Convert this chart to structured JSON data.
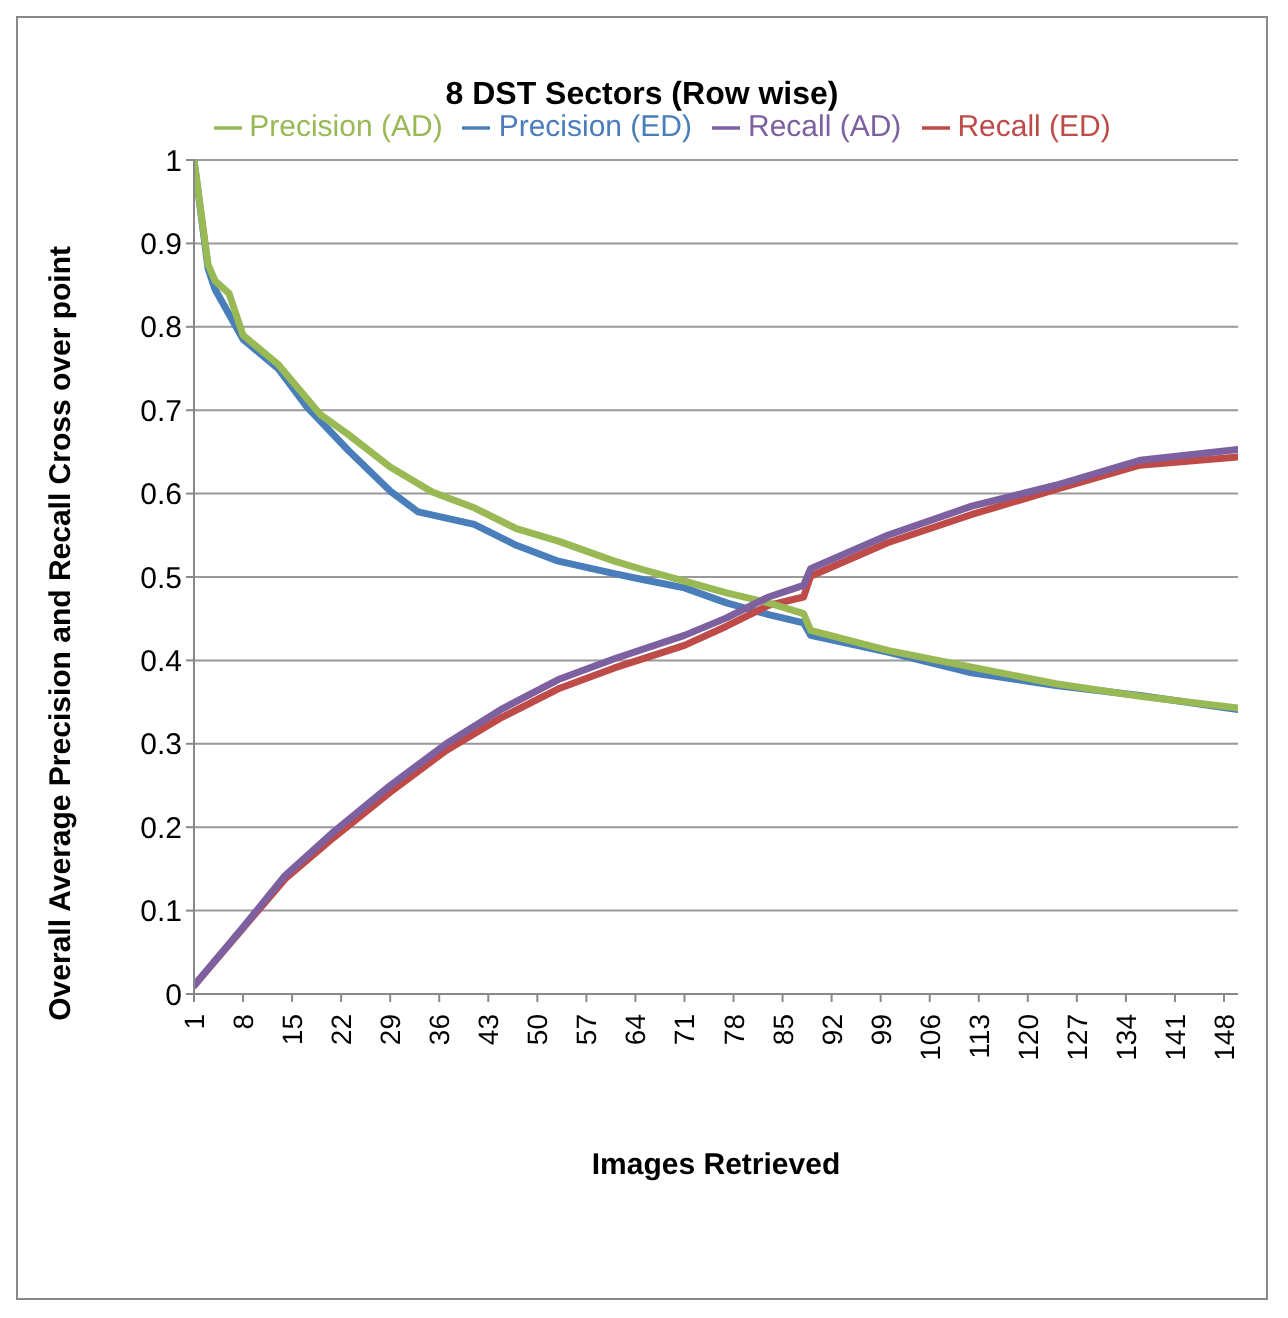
{
  "chart_data": {
    "type": "line",
    "title": "8  DST Sectors (Row wise)",
    "xlabel": "Images Retrieved",
    "ylabel": "Overall Average Precision and Recall Cross over point",
    "xlim": [
      1,
      150
    ],
    "xticks": [
      1,
      8,
      15,
      22,
      29,
      36,
      43,
      50,
      57,
      64,
      71,
      78,
      85,
      92,
      99,
      106,
      113,
      120,
      127,
      134,
      141,
      148
    ],
    "ylim": [
      0,
      1
    ],
    "yticks": [
      0,
      0.1,
      0.2,
      0.3,
      0.4,
      0.5,
      0.6,
      0.7,
      0.8,
      0.9,
      1
    ],
    "grid": "y",
    "legend": "top",
    "marker": "none",
    "line_style": "solid",
    "series": [
      {
        "name": "Precision (ED)",
        "color": "#4a7ebb",
        "x": [
          1,
          3,
          4,
          8,
          13,
          17,
          23,
          29,
          33,
          41,
          47,
          53,
          61,
          65,
          71,
          77,
          83,
          88,
          89,
          100,
          112,
          124,
          136,
          150
        ],
        "values": [
          1.0,
          0.87,
          0.845,
          0.785,
          0.75,
          0.705,
          0.652,
          0.603,
          0.578,
          0.563,
          0.538,
          0.519,
          0.504,
          0.497,
          0.487,
          0.469,
          0.455,
          0.445,
          0.43,
          0.41,
          0.385,
          0.37,
          0.358,
          0.341
        ]
      },
      {
        "name": "Recall (ED)",
        "color": "#be4b48",
        "x": [
          1,
          8,
          14,
          21,
          29,
          37,
          45,
          53,
          61,
          71,
          77,
          83,
          88,
          89,
          100,
          112,
          124,
          136,
          150
        ],
        "values": [
          0.01,
          0.079,
          0.138,
          0.188,
          0.242,
          0.292,
          0.332,
          0.366,
          0.391,
          0.418,
          0.441,
          0.466,
          0.476,
          0.501,
          0.541,
          0.575,
          0.605,
          0.634,
          0.644
        ]
      },
      {
        "name": "Precision (AD)",
        "color": "#98b954",
        "x": [
          1,
          3,
          4,
          6,
          8,
          13,
          15,
          19,
          23,
          29,
          35,
          41,
          47,
          53,
          61,
          65,
          71,
          77,
          83,
          88,
          89,
          100,
          112,
          124,
          136,
          150
        ],
        "values": [
          1.0,
          0.875,
          0.855,
          0.84,
          0.79,
          0.755,
          0.735,
          0.695,
          0.671,
          0.632,
          0.602,
          0.583,
          0.558,
          0.543,
          0.519,
          0.509,
          0.495,
          0.481,
          0.469,
          0.456,
          0.436,
          0.412,
          0.392,
          0.372,
          0.357,
          0.343
        ]
      },
      {
        "name": "Recall (AD)",
        "color": "#7d60a0",
        "x": [
          1,
          8,
          14,
          21,
          29,
          37,
          45,
          53,
          61,
          71,
          77,
          83,
          88,
          89,
          100,
          112,
          124,
          136,
          150
        ],
        "values": [
          0.01,
          0.08,
          0.142,
          0.195,
          0.25,
          0.3,
          0.342,
          0.377,
          0.402,
          0.43,
          0.451,
          0.476,
          0.49,
          0.51,
          0.55,
          0.585,
          0.61,
          0.64,
          0.653
        ]
      }
    ]
  }
}
